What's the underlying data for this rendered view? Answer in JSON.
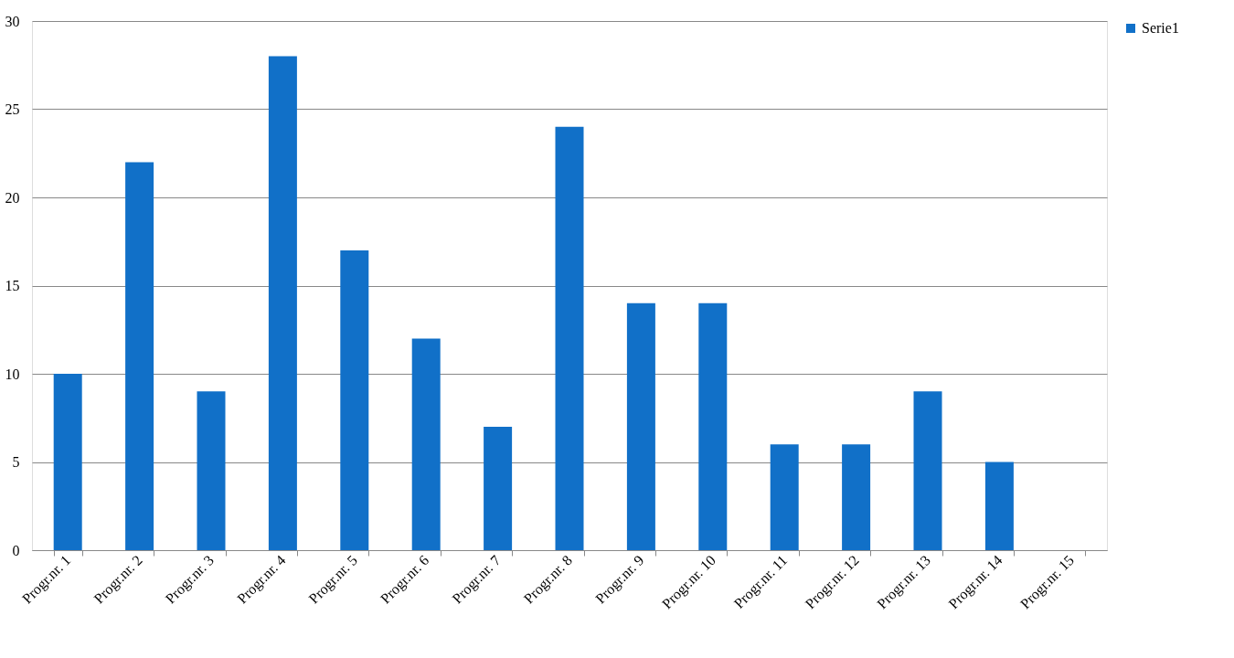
{
  "chart_data": {
    "type": "bar",
    "categories": [
      "Progr.nr. 1",
      "Progr.nr. 2",
      "Progr.nr. 3",
      "Progr.nr. 4",
      "Progr.nr. 5",
      "Progr.nr. 6",
      "Progr.nr. 7",
      "Progr.nr. 8",
      "Progr.nr. 9",
      "Progr.nr. 10",
      "Progr.nr. 11",
      "Progr.nr. 12",
      "Progr.nr. 13",
      "Progr.nr. 14",
      "Progr.nr. 15"
    ],
    "series": [
      {
        "name": "Serie1",
        "color": "#1170c8",
        "values": [
          10,
          22,
          9,
          28,
          17,
          12,
          7,
          24,
          14,
          14,
          6,
          6,
          9,
          5,
          0
        ]
      }
    ],
    "ylim": [
      0,
      30
    ],
    "yticks": [
      0,
      5,
      10,
      15,
      20,
      25,
      30
    ],
    "grid": "y",
    "legend": "right"
  }
}
